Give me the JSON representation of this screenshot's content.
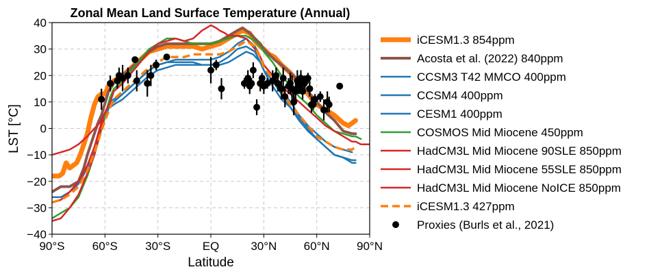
{
  "chart_data": {
    "type": "line",
    "title": "Zonal Mean Land Surface Temperature (Annual)",
    "xlabel": "Latitude",
    "ylabel": "LST [°C]",
    "xlim": [
      -90,
      90
    ],
    "ylim": [
      -40,
      40
    ],
    "x_ticks": [
      -90,
      -60,
      -30,
      0,
      30,
      60,
      90
    ],
    "x_tick_labels": [
      "90°S",
      "60°S",
      "30°S",
      "EQ",
      "30°N",
      "60°N",
      "90°N"
    ],
    "y_ticks": [
      -40,
      -30,
      -20,
      -10,
      0,
      10,
      20,
      30,
      40
    ],
    "y_tick_labels": [
      "−40",
      "−30",
      "−20",
      "−10",
      "0",
      "10",
      "20",
      "30",
      "40"
    ],
    "grid": true,
    "legend_position": "outside-right",
    "series": [
      {
        "name": "iCESM1.3 854ppm",
        "color": "#ff7f0e",
        "width": 7,
        "dash": "solid",
        "x": [
          -90,
          -86,
          -84,
          -82,
          -80,
          -78,
          -76,
          -74,
          -72,
          -70,
          -68,
          -66,
          -64,
          -62,
          -60,
          -58,
          -55,
          -50,
          -45,
          -40,
          -35,
          -30,
          -25,
          -20,
          -15,
          -10,
          -5,
          0,
          5,
          10,
          15,
          18,
          22,
          25,
          28,
          30,
          33,
          36,
          40,
          45,
          50,
          55,
          60,
          65,
          70,
          75,
          78,
          80,
          82
        ],
        "y": [
          -18,
          -18,
          -17,
          -13,
          -15,
          -14,
          -13,
          -10,
          -6,
          -2,
          4,
          9,
          12,
          13,
          13,
          16,
          18,
          20,
          23,
          26,
          29,
          30,
          31,
          31,
          31,
          31,
          30,
          31,
          32,
          34,
          36,
          37,
          36,
          33,
          31,
          30,
          28,
          27,
          24,
          21,
          17,
          13,
          9,
          7,
          5,
          2,
          1,
          2,
          3
        ]
      },
      {
        "name": "Acosta et al. (2022) 840ppm",
        "color": "#8c564b",
        "width": 4,
        "dash": "solid",
        "x": [
          -90,
          -85,
          -80,
          -75,
          -72,
          -70,
          -67,
          -64,
          -62,
          -58,
          -55,
          -50,
          -45,
          -40,
          -35,
          -30,
          -25,
          -20,
          -15,
          -10,
          -5,
          0,
          5,
          10,
          15,
          18,
          22,
          25,
          28,
          30,
          33,
          36,
          40,
          45,
          50,
          55,
          60,
          65,
          70,
          75,
          80,
          82
        ],
        "y": [
          -24,
          -22,
          -22,
          -20,
          -15,
          -10,
          -4,
          2,
          5,
          14,
          17,
          20,
          23,
          26,
          29,
          31,
          32,
          32,
          32,
          32,
          32,
          32,
          33,
          35,
          37,
          38,
          36,
          34,
          32,
          30,
          28,
          26,
          24,
          21,
          18,
          14,
          10,
          6,
          3,
          -1,
          -2,
          -2
        ]
      },
      {
        "name": "CCSM3 T42 MMCO 400ppm",
        "color": "#1f77b4",
        "width": 2.5,
        "dash": "solid",
        "x": [
          -90,
          -85,
          -80,
          -75,
          -70,
          -66,
          -63,
          -60,
          -57,
          -55,
          -50,
          -45,
          -40,
          -35,
          -30,
          -25,
          -20,
          -15,
          -10,
          -5,
          0,
          5,
          10,
          15,
          20,
          24,
          28,
          30,
          33,
          36,
          40,
          45,
          50,
          55,
          60,
          65,
          70,
          75,
          80,
          82
        ],
        "y": [
          -26,
          -26,
          -24,
          -21,
          -15,
          -8,
          -2,
          4,
          9,
          10,
          13,
          16,
          19,
          22,
          24,
          25,
          25,
          25,
          25,
          24,
          24,
          24,
          25,
          27,
          29,
          28,
          25,
          22,
          18,
          15,
          11,
          8,
          4,
          0,
          -4,
          -7,
          -10,
          -11,
          -12,
          -12
        ]
      },
      {
        "name": "CCSM4 400ppm",
        "color": "#1f77b4",
        "width": 2.5,
        "dash": "solid",
        "x": [
          -57,
          -55,
          -50,
          -45,
          -40,
          -35,
          -30,
          -25,
          -20,
          -15,
          -10,
          -5,
          0,
          5,
          10,
          15,
          20,
          25,
          28,
          30,
          35,
          40,
          45,
          50,
          55,
          60,
          65,
          70,
          75,
          80,
          82
        ],
        "y": [
          8,
          9,
          11,
          14,
          17,
          20,
          22,
          23,
          24,
          24,
          24,
          24,
          24,
          25,
          27,
          30,
          31,
          29,
          25,
          22,
          18,
          13,
          8,
          3,
          -1,
          -4,
          -7,
          -10,
          -11,
          -13,
          -13
        ]
      },
      {
        "name": "CESM1 400ppm",
        "color": "#1f77b4",
        "width": 2.5,
        "dash": "solid",
        "x": [
          -57,
          -55,
          -50,
          -45,
          -40,
          -35,
          -30,
          -25,
          -20,
          -15,
          -10,
          -5,
          0,
          5,
          10,
          15,
          20,
          25,
          28,
          30,
          35,
          40,
          45,
          50,
          55,
          60,
          65,
          70,
          75,
          80
        ],
        "y": [
          10,
          11,
          13,
          16,
          19,
          22,
          24,
          25,
          26,
          26,
          26,
          26,
          26,
          27,
          29,
          32,
          34,
          31,
          27,
          24,
          20,
          15,
          10,
          5,
          1,
          -2,
          -5,
          -7,
          -8,
          -9
        ]
      },
      {
        "name": "COSMOS Mid Miocene 450ppm",
        "color": "#2ca02c",
        "width": 2.5,
        "dash": "solid",
        "x": [
          -90,
          -85,
          -80,
          -75,
          -70,
          -66,
          -63,
          -60,
          -57,
          -55,
          -50,
          -45,
          -40,
          -35,
          -30,
          -25,
          -20,
          -15,
          -10,
          -5,
          0,
          5,
          10,
          15,
          20,
          25,
          28,
          30,
          35,
          40,
          45,
          50,
          55,
          60,
          65,
          70,
          75,
          80,
          82,
          85
        ],
        "y": [
          -34,
          -32,
          -30,
          -26,
          -18,
          -10,
          -3,
          5,
          12,
          15,
          18,
          22,
          26,
          30,
          32,
          34,
          34,
          33,
          32,
          32,
          32,
          33,
          34,
          35,
          35,
          33,
          31,
          29,
          25,
          20,
          16,
          12,
          9,
          5,
          2,
          -1,
          -2,
          -3,
          -3,
          -4
        ]
      },
      {
        "name": "HadCM3L Mid Miocene 90SLE 850ppm",
        "color": "#d62728",
        "width": 2.5,
        "dash": "solid",
        "x": [
          -90,
          -85,
          -80,
          -75,
          -70,
          -66,
          -63,
          -61
        ],
        "y": [
          -35,
          -34,
          -30,
          -25,
          -17,
          -10,
          -2,
          3
        ]
      },
      {
        "name": "HadCM3L Mid Miocene 55SLE 850ppm",
        "color": "#d62728",
        "width": 2.5,
        "dash": "solid",
        "x": [
          -90,
          -85,
          -80,
          -75,
          -70,
          -66,
          -63,
          -61
        ],
        "y": [
          -28,
          -27,
          -24,
          -20,
          -14,
          -7,
          0,
          4
        ]
      },
      {
        "name": "HadCM3L Mid Miocene NoICE 850ppm",
        "color": "#d62728",
        "width": 2.5,
        "dash": "solid",
        "x": [
          -90,
          -85,
          -80,
          -75,
          -70,
          -66,
          -63,
          -60,
          -57,
          -55,
          -50,
          -45,
          -40,
          -35,
          -30,
          -25,
          -20,
          -15,
          -10,
          -5,
          0,
          3,
          5,
          8,
          10,
          15,
          20,
          25,
          28,
          30,
          35,
          40,
          45,
          50,
          55,
          60,
          65,
          70,
          75,
          80,
          82,
          85,
          88,
          90
        ],
        "y": [
          -10,
          -9,
          -8,
          -6,
          -3,
          0,
          2,
          6,
          10,
          14,
          17,
          21,
          25,
          29,
          32,
          33,
          34,
          33,
          34,
          37,
          39,
          38,
          37,
          36,
          35,
          35,
          34,
          30,
          27,
          24,
          20,
          16,
          13,
          10,
          7,
          4,
          1,
          -1,
          -3,
          -5,
          -5,
          -6,
          -6,
          -6
        ]
      },
      {
        "name": "iCESM1.3 427ppm",
        "color": "#ff7f0e",
        "width": 3.5,
        "dash": "dashed",
        "x": [
          -90,
          -85,
          -80,
          -75,
          -70,
          -66,
          -63,
          -60,
          -57,
          -55,
          -50,
          -45,
          -40,
          -35,
          -30,
          -25,
          -20,
          -15,
          -10,
          -5,
          0,
          5,
          10,
          15,
          20,
          25,
          28,
          30,
          35,
          40,
          45,
          50,
          55,
          60,
          65,
          70,
          75,
          80,
          82
        ],
        "y": [
          -28,
          -27,
          -25,
          -22,
          -16,
          -9,
          -3,
          3,
          8,
          11,
          14,
          17,
          20,
          23,
          25,
          27,
          27,
          27,
          28,
          28,
          28,
          28,
          29,
          31,
          33,
          31,
          27,
          23,
          19,
          14,
          9,
          5,
          1,
          -3,
          -5,
          -7,
          -8,
          -8,
          -7
        ]
      }
    ],
    "proxies": {
      "name": "Proxies (Burls et al., 2021)",
      "color": "#000000",
      "points": [
        {
          "x": -62,
          "y": 11,
          "err": 4
        },
        {
          "x": -57,
          "y": 17,
          "err": 3
        },
        {
          "x": -53,
          "y": 18,
          "err": 3
        },
        {
          "x": -52,
          "y": 20,
          "err": 3
        },
        {
          "x": -50,
          "y": 19,
          "err": 5
        },
        {
          "x": -47,
          "y": 20,
          "err": 3
        },
        {
          "x": -43,
          "y": 26,
          "err": 1
        },
        {
          "x": -42,
          "y": 18,
          "err": 4
        },
        {
          "x": -36,
          "y": 17,
          "err": 5
        },
        {
          "x": -34,
          "y": 20,
          "err": 4
        },
        {
          "x": -31,
          "y": 24,
          "err": 2
        },
        {
          "x": -25,
          "y": 27,
          "err": 1
        },
        {
          "x": 0,
          "y": 22,
          "err": 5
        },
        {
          "x": 3,
          "y": 24,
          "err": 2
        },
        {
          "x": 6,
          "y": 15,
          "err": 4
        },
        {
          "x": 19,
          "y": 17,
          "err": 2
        },
        {
          "x": 21,
          "y": 19,
          "err": 3
        },
        {
          "x": 22,
          "y": 16,
          "err": 3
        },
        {
          "x": 23,
          "y": 17,
          "err": 2
        },
        {
          "x": 24,
          "y": 22,
          "err": 3
        },
        {
          "x": 26,
          "y": 8,
          "err": 3
        },
        {
          "x": 28,
          "y": 17,
          "err": 3
        },
        {
          "x": 29,
          "y": 19,
          "err": 2
        },
        {
          "x": 30,
          "y": 16,
          "err": 3
        },
        {
          "x": 32,
          "y": 17,
          "err": 2
        },
        {
          "x": 35,
          "y": 18,
          "err": 4
        },
        {
          "x": 37,
          "y": 20,
          "err": 3
        },
        {
          "x": 38,
          "y": 17,
          "err": 3
        },
        {
          "x": 40,
          "y": 15,
          "err": 4
        },
        {
          "x": 41,
          "y": 19,
          "err": 4
        },
        {
          "x": 42,
          "y": 12,
          "err": 4
        },
        {
          "x": 44,
          "y": 16,
          "err": 3
        },
        {
          "x": 45,
          "y": 17,
          "err": 4
        },
        {
          "x": 46,
          "y": 15,
          "err": 5
        },
        {
          "x": 47,
          "y": 10,
          "err": 5
        },
        {
          "x": 48,
          "y": 14,
          "err": 4
        },
        {
          "x": 49,
          "y": 18,
          "err": 4
        },
        {
          "x": 50,
          "y": 16,
          "err": 3
        },
        {
          "x": 51,
          "y": 19,
          "err": 3
        },
        {
          "x": 52,
          "y": 14,
          "err": 3
        },
        {
          "x": 53,
          "y": 17,
          "err": 3
        },
        {
          "x": 55,
          "y": 19,
          "err": 2
        },
        {
          "x": 56,
          "y": 15,
          "err": 3
        },
        {
          "x": 57,
          "y": 9,
          "err": 3
        },
        {
          "x": 58,
          "y": 9,
          "err": 2
        },
        {
          "x": 59,
          "y": 11,
          "err": 2
        },
        {
          "x": 62,
          "y": 12,
          "err": 2
        },
        {
          "x": 64,
          "y": 7,
          "err": 4
        },
        {
          "x": 66,
          "y": 10,
          "err": 4
        },
        {
          "x": 67,
          "y": 9,
          "err": 3
        },
        {
          "x": 73,
          "y": 16,
          "err": 1
        }
      ]
    }
  }
}
